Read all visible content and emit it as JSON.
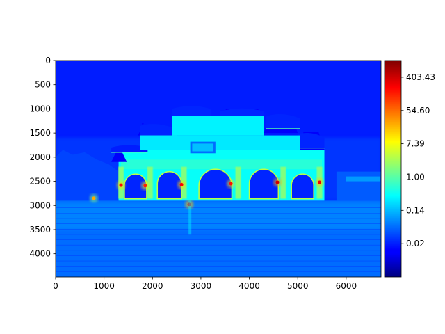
{
  "chart_data": {
    "type": "heatmap",
    "title": "",
    "xlabel": "",
    "ylabel": "",
    "xlim": [
      0,
      6720
    ],
    "ylim": [
      4480,
      0
    ],
    "x_ticks": [
      0,
      1000,
      2000,
      3000,
      4000,
      5000,
      6000
    ],
    "x_tick_labels": [
      "0",
      "1000",
      "2000",
      "3000",
      "4000",
      "5000",
      "6000"
    ],
    "y_ticks": [
      0,
      500,
      1000,
      1500,
      2000,
      2500,
      3000,
      3500,
      4000
    ],
    "y_tick_labels": [
      "0",
      "500",
      "1000",
      "1500",
      "2000",
      "2500",
      "3000",
      "3500",
      "4000"
    ],
    "colorbar": {
      "scale": "log",
      "colormap": "jet",
      "range": [
        0.00248,
        1096.6
      ],
      "ticks": [
        0.0183,
        0.1353,
        1.0,
        7.389,
        54.598,
        403.43
      ],
      "tick_labels": [
        "0.02",
        "0.14",
        "1.00",
        "7.39",
        "54.60",
        "403.43"
      ]
    },
    "image_features": {
      "background_level": 0.02,
      "sky_level": 0.018,
      "gate_level": 0.35,
      "pavement_level": 0.05,
      "lamp_level": 150,
      "arch_centers_x": [
        1650,
        2350,
        3300,
        4300,
        5100
      ],
      "lamp_points": [
        [
          1350,
          2580,
          200
        ],
        [
          1850,
          2590,
          150
        ],
        [
          2600,
          2570,
          220
        ],
        [
          2760,
          2980,
          300
        ],
        [
          3620,
          2550,
          180
        ],
        [
          4580,
          2520,
          380
        ],
        [
          5450,
          2520,
          260
        ],
        [
          790,
          2850,
          25
        ]
      ]
    },
    "colors": {
      "jet_stops": [
        "#00007f",
        "#0000ff",
        "#007fff",
        "#00ffff",
        "#7fff7f",
        "#ffff00",
        "#ff7f00",
        "#ff0000",
        "#7f0000"
      ]
    }
  }
}
